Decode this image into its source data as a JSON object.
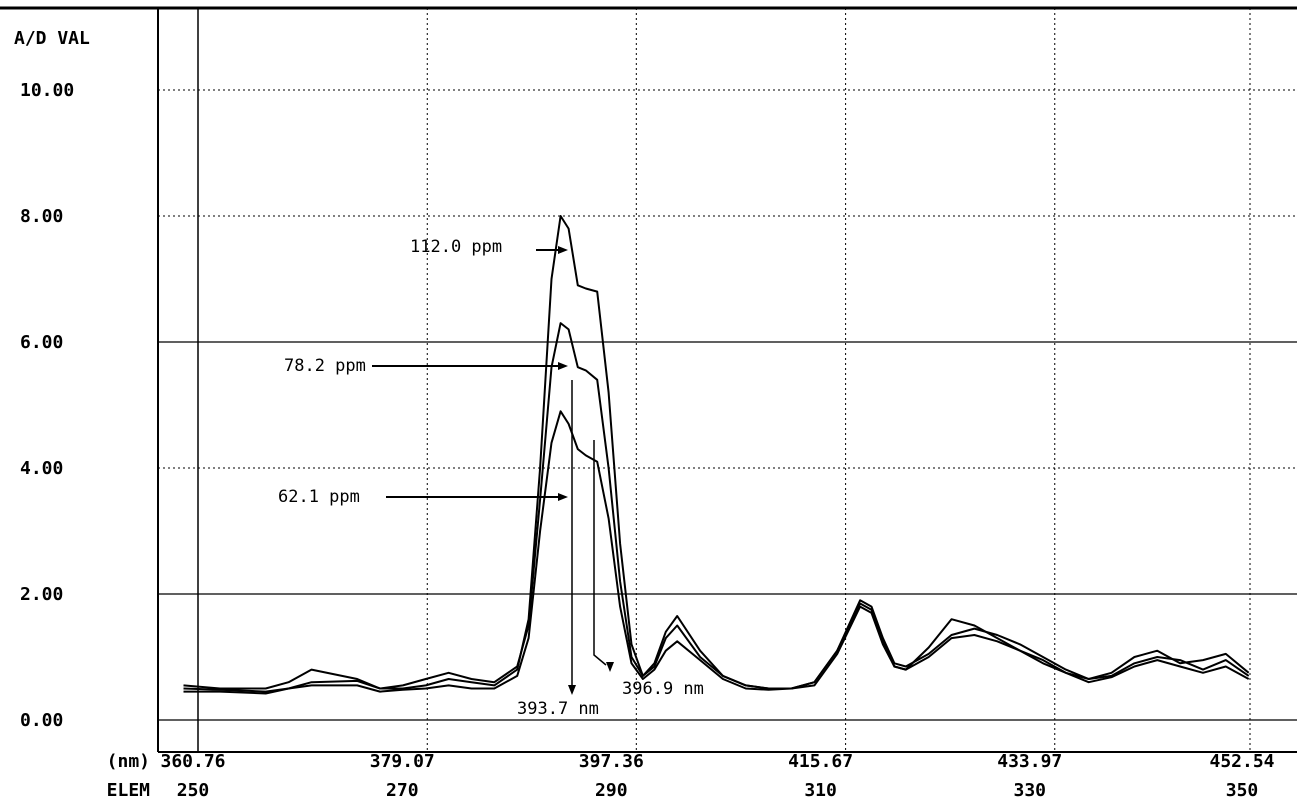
{
  "chart_data": {
    "type": "line",
    "ylabel": "A/D VAL",
    "ylim": [
      0,
      10
    ],
    "y_ticks": [
      {
        "value": 0,
        "label": "0.00"
      },
      {
        "value": 2,
        "label": "2.00"
      },
      {
        "value": 4,
        "label": "4.00"
      },
      {
        "value": 6,
        "label": "6.00"
      },
      {
        "value": 8,
        "label": "8.00"
      },
      {
        "value": 10,
        "label": "10.00"
      }
    ],
    "xlabel": "(nm)",
    "xlim": [
      357.96,
      458.3
    ],
    "x_ticks": [
      {
        "value": 360.76,
        "label": "360.76"
      },
      {
        "value": 379.07,
        "label": "379.07"
      },
      {
        "value": 397.36,
        "label": "397.36"
      },
      {
        "value": 415.67,
        "label": "415.67"
      },
      {
        "value": 433.97,
        "label": "433.97"
      },
      {
        "value": 452.54,
        "label": "452.54"
      }
    ],
    "x2label": "ELEM",
    "x2_ticks": [
      {
        "value": 360.76,
        "label": "250"
      },
      {
        "value": 379.07,
        "label": "270"
      },
      {
        "value": 397.36,
        "label": "290"
      },
      {
        "value": 415.67,
        "label": "310"
      },
      {
        "value": 433.97,
        "label": "330"
      },
      {
        "value": 452.54,
        "label": "350"
      }
    ],
    "grid": true,
    "series": [
      {
        "name": "112.0 ppm",
        "x": [
          360.8,
          364,
          368,
          370,
          372,
          376,
          378,
          380,
          382,
          384,
          386,
          388,
          390,
          391,
          392,
          393,
          393.8,
          394.5,
          395.3,
          396,
          397,
          398,
          399,
          400,
          401,
          402,
          403,
          404,
          406,
          408,
          410,
          412,
          414,
          416,
          418,
          420,
          421,
          422,
          423,
          424,
          426,
          428,
          430,
          432,
          434,
          436,
          438,
          440,
          442,
          444,
          446,
          448,
          450,
          452,
          454
        ],
        "values": [
          0.5,
          0.48,
          0.45,
          0.5,
          0.6,
          0.62,
          0.5,
          0.5,
          0.55,
          0.65,
          0.6,
          0.55,
          0.8,
          1.6,
          4.0,
          7.0,
          8.0,
          7.8,
          6.9,
          6.85,
          6.8,
          5.2,
          2.8,
          1.2,
          0.7,
          0.9,
          1.4,
          1.65,
          1.1,
          0.7,
          0.55,
          0.5,
          0.5,
          0.6,
          1.1,
          1.9,
          1.8,
          1.3,
          0.9,
          0.85,
          1.05,
          1.35,
          1.45,
          1.35,
          1.2,
          1.0,
          0.8,
          0.65,
          0.7,
          0.9,
          1.0,
          0.95,
          0.8,
          0.95,
          0.7
        ]
      },
      {
        "name": "78.2 ppm",
        "x": [
          360.8,
          364,
          368,
          370,
          372,
          376,
          378,
          380,
          382,
          384,
          386,
          388,
          390,
          391,
          392,
          393,
          393.8,
          394.5,
          395.3,
          396,
          397,
          398,
          399,
          400,
          401,
          402,
          403,
          404,
          406,
          408,
          410,
          412,
          414,
          416,
          418,
          420,
          421,
          422,
          423,
          424,
          426,
          428,
          430,
          432,
          434,
          436,
          438,
          440,
          442,
          444,
          446,
          448,
          450,
          452,
          454
        ],
        "values": [
          0.55,
          0.5,
          0.5,
          0.6,
          0.8,
          0.65,
          0.5,
          0.55,
          0.65,
          0.75,
          0.65,
          0.6,
          0.85,
          1.5,
          3.5,
          5.6,
          6.3,
          6.2,
          5.6,
          5.55,
          5.4,
          4.0,
          2.2,
          1.0,
          0.7,
          0.85,
          1.3,
          1.5,
          1.0,
          0.7,
          0.55,
          0.5,
          0.5,
          0.6,
          1.1,
          1.85,
          1.75,
          1.25,
          0.85,
          0.8,
          1.15,
          1.6,
          1.5,
          1.3,
          1.1,
          0.9,
          0.75,
          0.65,
          0.75,
          1.0,
          1.1,
          0.9,
          0.95,
          1.05,
          0.75
        ]
      },
      {
        "name": "62.1 ppm",
        "x": [
          360.8,
          364,
          368,
          370,
          372,
          376,
          378,
          380,
          382,
          384,
          386,
          388,
          390,
          391,
          392,
          393,
          393.8,
          394.5,
          395.3,
          396,
          397,
          398,
          399,
          400,
          401,
          402,
          403,
          404,
          406,
          408,
          410,
          412,
          414,
          416,
          418,
          420,
          421,
          422,
          423,
          424,
          426,
          428,
          430,
          432,
          434,
          436,
          438,
          440,
          442,
          444,
          446,
          448,
          450,
          452,
          454
        ],
        "values": [
          0.45,
          0.45,
          0.42,
          0.5,
          0.55,
          0.55,
          0.45,
          0.48,
          0.5,
          0.55,
          0.5,
          0.5,
          0.7,
          1.3,
          3.0,
          4.4,
          4.9,
          4.7,
          4.3,
          4.2,
          4.1,
          3.2,
          1.8,
          0.9,
          0.65,
          0.8,
          1.1,
          1.25,
          0.95,
          0.65,
          0.5,
          0.48,
          0.5,
          0.55,
          1.05,
          1.8,
          1.7,
          1.2,
          0.85,
          0.8,
          1.0,
          1.3,
          1.35,
          1.25,
          1.1,
          0.95,
          0.75,
          0.6,
          0.68,
          0.85,
          0.95,
          0.85,
          0.75,
          0.85,
          0.65
        ]
      }
    ],
    "annotations": [
      {
        "text": "112.0 ppm",
        "x": 393.8,
        "y": 7.6
      },
      {
        "text": "78.2 ppm",
        "x": 393.8,
        "y": 5.6
      },
      {
        "text": "62.1 ppm",
        "x": 393.8,
        "y": 3.5
      },
      {
        "text": "393.7 nm",
        "x": 393.7,
        "y": -0.2
      },
      {
        "text": "396.9 nm",
        "x": 396.9,
        "y": 0.4
      }
    ]
  }
}
